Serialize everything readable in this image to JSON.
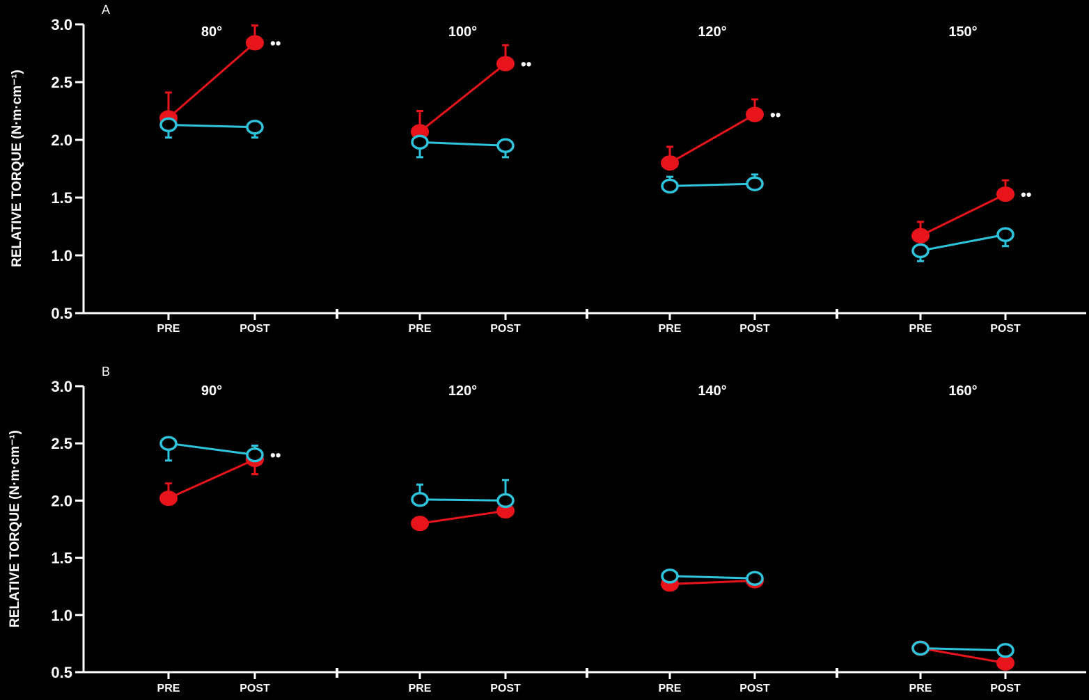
{
  "colors": {
    "background": "#000000",
    "axis": "#ffffff",
    "trained": "#e8141b",
    "control": "#2ec4dc"
  },
  "chart_data": [
    {
      "type": "line",
      "panel_label": "A",
      "ylabel": "RELATIVE TORQUE (N·m·cm⁻¹)",
      "ylim": [
        0.5,
        3.0
      ],
      "yticks": [
        "0.5",
        "1.0",
        "1.5",
        "2.0",
        "2.5",
        "3.0"
      ],
      "x_tick_labels": [
        "PRE",
        "POST"
      ],
      "groups": [
        {
          "label": "80°",
          "series": [
            {
              "marker": "filled",
              "color": "red",
              "values": [
                2.19,
                2.84
              ],
              "error_plus": [
                0.22,
                0.15
              ],
              "significance": "••"
            },
            {
              "marker": "open",
              "color": "cyan",
              "values": [
                2.13,
                2.11
              ],
              "error_minus": [
                0.11,
                0.09
              ]
            }
          ]
        },
        {
          "label": "100°",
          "series": [
            {
              "marker": "filled",
              "color": "red",
              "values": [
                2.07,
                2.66
              ],
              "error_plus": [
                0.18,
                0.16
              ],
              "significance": "••"
            },
            {
              "marker": "open",
              "color": "cyan",
              "values": [
                1.98,
                1.95
              ],
              "error_minus": [
                0.13,
                0.1
              ]
            }
          ]
        },
        {
          "label": "120°",
          "series": [
            {
              "marker": "filled",
              "color": "red",
              "values": [
                1.8,
                2.22
              ],
              "error_plus": [
                0.14,
                0.13
              ],
              "significance": "••"
            },
            {
              "marker": "open",
              "color": "cyan",
              "values": [
                1.6,
                1.62
              ],
              "error_plus": [
                0.08,
                0.08
              ]
            }
          ]
        },
        {
          "label": "150°",
          "series": [
            {
              "marker": "filled",
              "color": "red",
              "values": [
                1.17,
                1.53
              ],
              "error_plus": [
                0.12,
                0.12
              ],
              "significance": "••"
            },
            {
              "marker": "open",
              "color": "cyan",
              "values": [
                1.04,
                1.18
              ],
              "error_minus": [
                0.09,
                0.1
              ]
            }
          ]
        }
      ]
    },
    {
      "type": "line",
      "panel_label": "B",
      "ylabel": "RELATIVE TORQUE (N·m·cm⁻¹)",
      "ylim": [
        0.5,
        3.0
      ],
      "yticks": [
        "0.5",
        "1.0",
        "1.5",
        "2.0",
        "2.5",
        "3.0"
      ],
      "x_tick_labels": [
        "PRE",
        "POST"
      ],
      "groups": [
        {
          "label": "90°",
          "series": [
            {
              "marker": "filled",
              "color": "red",
              "values": [
                2.02,
                2.36
              ],
              "error_plus": [
                0.13,
                0
              ],
              "error_minus": [
                0,
                0.13
              ]
            },
            {
              "marker": "open",
              "color": "cyan",
              "values": [
                2.5,
                2.4
              ],
              "error_plus": [
                0,
                0.08
              ],
              "error_minus": [
                0.15,
                0
              ],
              "significance": "••"
            }
          ]
        },
        {
          "label": "120°",
          "series": [
            {
              "marker": "filled",
              "color": "red",
              "values": [
                1.8,
                1.91
              ]
            },
            {
              "marker": "open",
              "color": "cyan",
              "values": [
                2.01,
                2.0
              ],
              "error_plus": [
                0.13,
                0.18
              ]
            }
          ]
        },
        {
          "label": "140°",
          "series": [
            {
              "marker": "filled",
              "color": "red",
              "values": [
                1.27,
                1.3
              ]
            },
            {
              "marker": "open",
              "color": "cyan",
              "values": [
                1.34,
                1.32
              ]
            }
          ]
        },
        {
          "label": "160°",
          "series": [
            {
              "marker": "filled",
              "color": "red",
              "values": [
                0.71,
                0.58
              ]
            },
            {
              "marker": "open",
              "color": "cyan",
              "values": [
                0.71,
                0.69
              ]
            }
          ]
        }
      ]
    }
  ]
}
